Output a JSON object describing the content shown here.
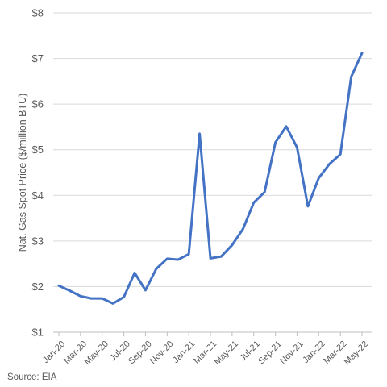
{
  "chart_data": {
    "type": "line",
    "title": "",
    "ylabel": "Nat. Gas Spot Price ($/million BTU)",
    "xlabel": "",
    "source": "Source: EIA",
    "ylim": [
      1,
      8
    ],
    "yticks": [
      1,
      2,
      3,
      4,
      5,
      6,
      7,
      8
    ],
    "ytick_labels": [
      "$1",
      "$2",
      "$3",
      "$4",
      "$5",
      "$6",
      "$7",
      "$8"
    ],
    "xtick_labels": [
      "Jan-20",
      "Mar-20",
      "May-20",
      "Jul-20",
      "Sep-20",
      "Nov-20",
      "Jan-21",
      "Mar-21",
      "May-21",
      "Jul-21",
      "Sep-21",
      "Nov-21",
      "Jan-22",
      "Mar-22",
      "May-22"
    ],
    "grid": true,
    "legend": "none",
    "color": "#4472C4",
    "x": [
      "Jan-20",
      "Feb-20",
      "Mar-20",
      "Apr-20",
      "May-20",
      "Jun-20",
      "Jul-20",
      "Aug-20",
      "Sep-20",
      "Oct-20",
      "Nov-20",
      "Dec-20",
      "Jan-21",
      "Feb-21",
      "Mar-21",
      "Apr-21",
      "May-21",
      "Jun-21",
      "Jul-21",
      "Aug-21",
      "Sep-21",
      "Oct-21",
      "Nov-21",
      "Dec-21",
      "Jan-22",
      "Feb-22",
      "Mar-22",
      "Apr-22",
      "May-22"
    ],
    "values": [
      2.02,
      1.91,
      1.79,
      1.74,
      1.74,
      1.63,
      1.77,
      2.3,
      1.92,
      2.39,
      2.61,
      2.59,
      2.71,
      5.35,
      2.62,
      2.66,
      2.91,
      3.26,
      3.84,
      4.07,
      5.16,
      5.51,
      5.05,
      3.76,
      4.38,
      4.69,
      4.9,
      6.6,
      7.12
    ]
  }
}
